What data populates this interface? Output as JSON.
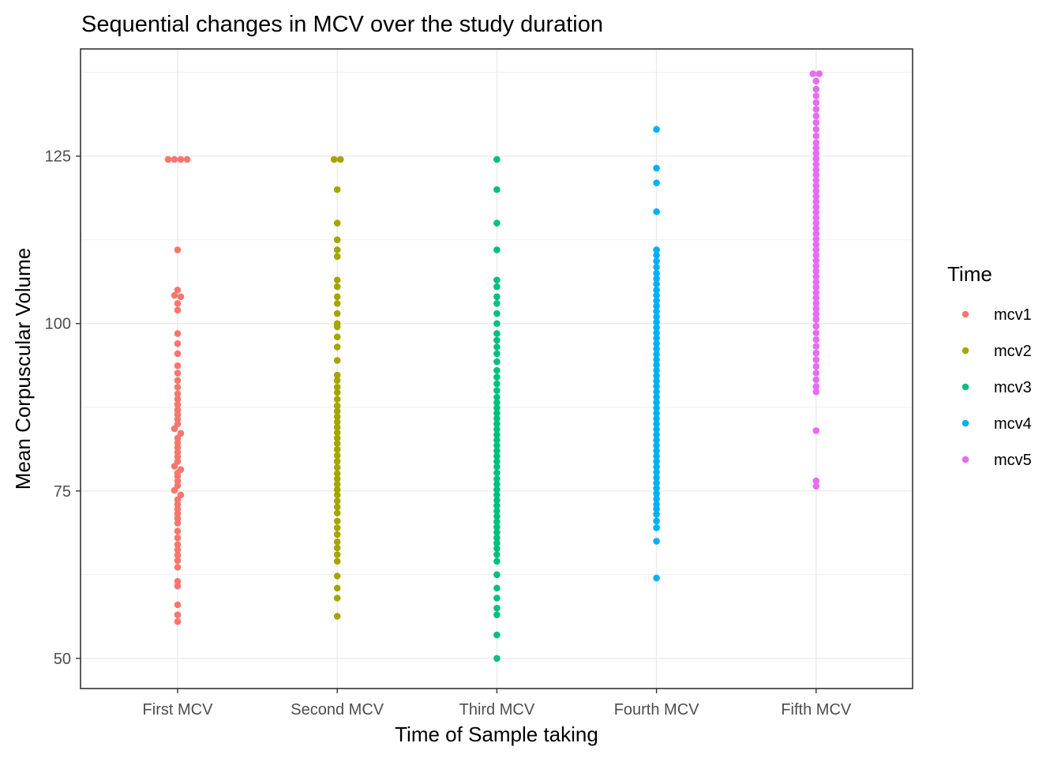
{
  "chart_data": {
    "type": "scatter",
    "subtype": "beeswarm",
    "title": "Sequential changes in MCV over the study duration",
    "xlabel": "Time of Sample taking",
    "ylabel": "Mean Corpuscular Volume",
    "categories": [
      "First MCV",
      "Second MCV",
      "Third MCV",
      "Fourth MCV",
      "Fifth MCV"
    ],
    "yticks": [
      50,
      75,
      100,
      125
    ],
    "ylim": [
      45.5,
      141
    ],
    "grid": true,
    "legend": {
      "title": "Time",
      "position": "right",
      "entries": [
        "mcv1",
        "mcv2",
        "mcv3",
        "mcv4",
        "mcv5"
      ]
    },
    "series": [
      {
        "name": "mcv1",
        "category": "First MCV",
        "color": "#F8766D",
        "values": [
          124.5,
          124.5,
          124.5,
          124.5,
          111,
          105,
          104.2,
          104,
          103,
          102,
          98.5,
          97,
          95.5,
          93.7,
          92.6,
          91.5,
          90.5,
          89.5,
          88.7,
          87.9,
          87.1,
          86.4,
          85.7,
          85,
          84.3,
          83.6,
          82.9,
          82.2,
          81.5,
          80.8,
          80.1,
          79.4,
          78.7,
          78.2,
          77.7,
          77.2,
          76.5,
          75.8,
          75.1,
          74.4,
          73.7,
          73,
          72.3,
          71.6,
          70.9,
          70.2,
          69,
          68,
          67,
          66.2,
          65.4,
          64.6,
          63.6,
          61.5,
          60.8,
          58,
          56.5,
          55.5
        ]
      },
      {
        "name": "mcv2",
        "category": "Second MCV",
        "color": "#A3A500",
        "values": [
          124.5,
          124.5,
          120,
          115,
          112.5,
          111,
          110,
          106.5,
          105.5,
          104,
          103,
          101.5,
          100,
          99.5,
          98,
          96.5,
          94.5,
          92.3,
          91.5,
          90.5,
          89.7,
          88.7,
          87.7,
          86.9,
          86.1,
          85.3,
          84.5,
          83.7,
          82.9,
          82.1,
          81.2,
          80.3,
          79.4,
          78.5,
          77.6,
          76.8,
          76,
          75.2,
          74.4,
          73.5,
          72.6,
          71.7,
          70.5,
          69.5,
          68.5,
          67.4,
          66.5,
          65.5,
          64.5,
          62.3,
          60.5,
          59,
          56.3
        ]
      },
      {
        "name": "mcv3",
        "category": "Third MCV",
        "color": "#00BF7D",
        "values": [
          124.5,
          120,
          115,
          111,
          106.5,
          105.5,
          104,
          103,
          101.5,
          100,
          98.5,
          97.5,
          96.5,
          95.5,
          94.3,
          93,
          92,
          91,
          90,
          89,
          88.2,
          87.4,
          86.6,
          85.8,
          85,
          84.2,
          83.4,
          82.6,
          81.8,
          81,
          80.2,
          79.4,
          78.6,
          77.7,
          76.8,
          76,
          75.2,
          74.4,
          73.6,
          72.8,
          72,
          71.2,
          70.4,
          69.6,
          68.8,
          68,
          67.2,
          66.4,
          65.5,
          64.5,
          62.5,
          60.5,
          59,
          57.5,
          56.5,
          53.5,
          50
        ]
      },
      {
        "name": "mcv4",
        "category": "Fourth MCV",
        "color": "#00B0F6",
        "values": [
          129,
          123.2,
          121,
          116.7,
          111,
          110.2,
          109.3,
          108.4,
          107.5,
          106.7,
          105.9,
          105,
          104.2,
          103.4,
          102.6,
          101.8,
          101,
          100.2,
          99.4,
          98.6,
          97.8,
          97,
          96.2,
          95.4,
          94.6,
          93.8,
          93,
          92.2,
          91.4,
          90.6,
          89.8,
          89,
          88.2,
          87.4,
          86.6,
          85.8,
          85,
          84.2,
          83.4,
          82.6,
          81.8,
          81,
          80.2,
          79.4,
          78.6,
          77.8,
          77,
          76.2,
          75.4,
          74.6,
          73.8,
          73,
          72.3,
          71.5,
          70.5,
          69.5,
          67.5,
          62
        ]
      },
      {
        "name": "mcv5",
        "category": "Fifth MCV",
        "color": "#E76BF3",
        "values": [
          137.3,
          137.3,
          136.2,
          135,
          134,
          133,
          132,
          131,
          130,
          129,
          128,
          127,
          126.2,
          125.4,
          124.6,
          123.8,
          123,
          122.2,
          121.4,
          120.6,
          119.8,
          119,
          118.2,
          117.4,
          116.6,
          115.8,
          115,
          114.2,
          113.4,
          112.6,
          111.8,
          111,
          110.2,
          109.4,
          108.6,
          107.8,
          107,
          106.2,
          105.4,
          104.6,
          103.8,
          103,
          102.2,
          101.4,
          100.6,
          99.6,
          98.6,
          97.6,
          96.6,
          95.6,
          94.6,
          93.6,
          92.6,
          91.6,
          90.6,
          89.8,
          84,
          76.5,
          75.7
        ]
      }
    ]
  }
}
